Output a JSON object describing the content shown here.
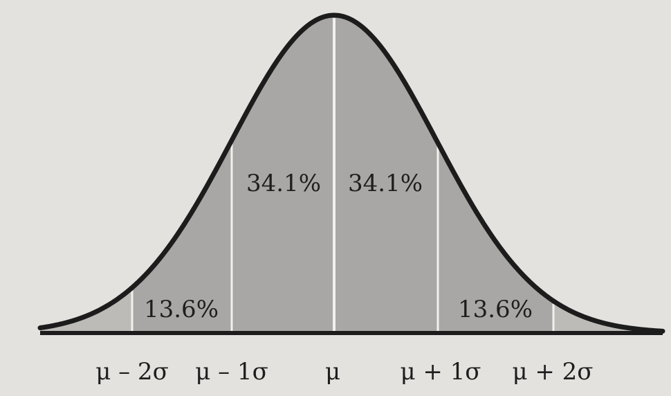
{
  "diagram": {
    "type": "normal-distribution",
    "colors": {
      "page": "#e4e2df",
      "fill": "#a9a7a5",
      "fill_tail": "#bdbbb8",
      "curve": "#1c1c1c",
      "divider": "#f2f0ec"
    },
    "regions": [
      {
        "from": -3,
        "to": -2,
        "label": ""
      },
      {
        "from": -2,
        "to": -1,
        "label": "13.6%"
      },
      {
        "from": -1,
        "to": 0,
        "label": "34.1%"
      },
      {
        "from": 0,
        "to": 1,
        "label": "34.1%"
      },
      {
        "from": 1,
        "to": 2,
        "label": "13.6%"
      },
      {
        "from": 2,
        "to": 3,
        "label": ""
      }
    ],
    "axis_labels": [
      {
        "z": -2,
        "text": "μ – 2σ"
      },
      {
        "z": -1,
        "text": "μ – 1σ"
      },
      {
        "z": 0,
        "text": "μ"
      },
      {
        "z": 1,
        "text": "μ + 1σ"
      },
      {
        "z": 2,
        "text": "μ + 2σ"
      }
    ]
  }
}
